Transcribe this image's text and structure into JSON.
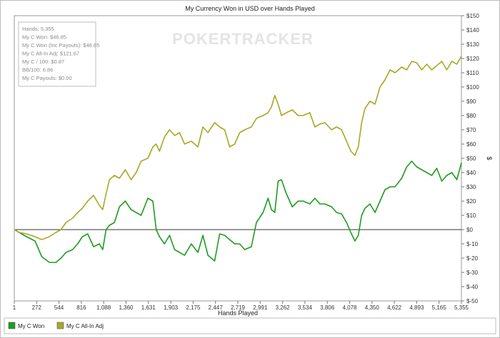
{
  "chart_data": {
    "type": "line",
    "title": "My Currency Won in USD over Hands Played",
    "xlabel": "Hands Played",
    "ylabel": "$",
    "xlim": [
      1,
      5355
    ],
    "ylim": [
      -50,
      150
    ],
    "x_ticks": [
      "1",
      "272",
      "544",
      "816",
      "1,088",
      "1,360",
      "1,631",
      "1,903",
      "2,175",
      "2,447",
      "2,719",
      "2,991",
      "3,262",
      "3,534",
      "3,806",
      "4,078",
      "4,350",
      "4,622",
      "4,893",
      "5,165",
      "5,355"
    ],
    "y_ticks": [
      "$150",
      "$140",
      "$130",
      "$120",
      "$110",
      "$100",
      "$90",
      "$80",
      "$70",
      "$60",
      "$50",
      "$40",
      "$30",
      "$20",
      "$10",
      "$0",
      "$-10",
      "$-20",
      "$-30",
      "$-40",
      "$-50"
    ],
    "grid": false,
    "legend": "bottom-left",
    "stats_box": [
      "Hands: 5,355",
      "My C Won: $46.85",
      "My C Won (Inc Payouts): $46.85",
      "My C All-In Adj: $121.67",
      "My C / 100: $0.87",
      "BB/100: 6.86",
      "My C Payouts: $0.00"
    ],
    "watermark": "POKERTRACKER",
    "series": [
      {
        "name": "My C Won",
        "color": "#1f9c1f",
        "x": [
          1,
          60,
          150,
          250,
          330,
          420,
          500,
          560,
          620,
          700,
          760,
          816,
          880,
          950,
          1020,
          1060,
          1100,
          1140,
          1200,
          1260,
          1330,
          1400,
          1460,
          1520,
          1600,
          1660,
          1700,
          1740,
          1800,
          1860,
          1920,
          1980,
          2040,
          2120,
          2200,
          2260,
          2320,
          2400,
          2460,
          2520,
          2580,
          2640,
          2700,
          2760,
          2840,
          2900,
          2980,
          3040,
          3080,
          3120,
          3160,
          3200,
          3260,
          3330,
          3400,
          3460,
          3540,
          3600,
          3660,
          3720,
          3800,
          3860,
          3920,
          3980,
          4030,
          4080,
          4120,
          4160,
          4200,
          4260,
          4320,
          4380,
          4440,
          4500,
          4560,
          4640,
          4700,
          4760,
          4820,
          4880,
          4940,
          5000,
          5060,
          5120,
          5180,
          5240,
          5300,
          5355
        ],
        "values": [
          0,
          -2,
          -5,
          -8,
          -19,
          -23,
          -23,
          -20,
          -16,
          -14,
          -10,
          -5,
          -3,
          -12,
          -10,
          -14,
          0,
          3,
          5,
          16,
          20,
          14,
          12,
          10,
          22,
          20,
          0,
          -5,
          -10,
          -4,
          -14,
          -16,
          -18,
          -10,
          -16,
          -4,
          -18,
          -22,
          -3,
          -4,
          -7,
          -10,
          -10,
          -14,
          -12,
          5,
          12,
          22,
          14,
          12,
          34,
          35,
          25,
          16,
          20,
          20,
          18,
          22,
          18,
          18,
          16,
          12,
          11,
          5,
          -2,
          -8,
          -4,
          10,
          15,
          18,
          12,
          20,
          28,
          30,
          30,
          36,
          44,
          48,
          44,
          42,
          40,
          38,
          43,
          34,
          38,
          40,
          35,
          46.85
        ]
      },
      {
        "name": "My C All-In Adj",
        "color": "#a8a826",
        "x": [
          1,
          60,
          150,
          250,
          330,
          420,
          500,
          560,
          620,
          700,
          760,
          816,
          880,
          950,
          1020,
          1060,
          1100,
          1140,
          1200,
          1260,
          1330,
          1400,
          1460,
          1520,
          1600,
          1660,
          1700,
          1740,
          1800,
          1860,
          1920,
          1980,
          2040,
          2120,
          2200,
          2260,
          2320,
          2400,
          2460,
          2520,
          2580,
          2640,
          2700,
          2760,
          2840,
          2900,
          2980,
          3040,
          3080,
          3120,
          3160,
          3200,
          3260,
          3330,
          3400,
          3460,
          3540,
          3600,
          3660,
          3720,
          3800,
          3860,
          3920,
          3980,
          4030,
          4080,
          4120,
          4160,
          4200,
          4260,
          4320,
          4380,
          4440,
          4500,
          4560,
          4640,
          4700,
          4760,
          4820,
          4880,
          4940,
          5000,
          5060,
          5120,
          5180,
          5240,
          5300,
          5355
        ],
        "values": [
          0,
          -2,
          -3,
          -5,
          -7,
          -5,
          -2,
          0,
          5,
          8,
          12,
          15,
          20,
          24,
          17,
          14,
          25,
          35,
          38,
          36,
          42,
          35,
          40,
          48,
          50,
          58,
          60,
          55,
          65,
          70,
          66,
          68,
          60,
          62,
          58,
          72,
          68,
          75,
          72,
          70,
          58,
          60,
          68,
          70,
          72,
          78,
          80,
          82,
          86,
          94,
          88,
          80,
          82,
          84,
          80,
          80,
          82,
          72,
          74,
          75,
          70,
          72,
          70,
          62,
          55,
          52,
          58,
          75,
          85,
          90,
          88,
          100,
          105,
          112,
          110,
          114,
          112,
          118,
          117,
          112,
          116,
          112,
          115,
          118,
          112,
          118,
          116,
          121.67
        ]
      }
    ]
  }
}
